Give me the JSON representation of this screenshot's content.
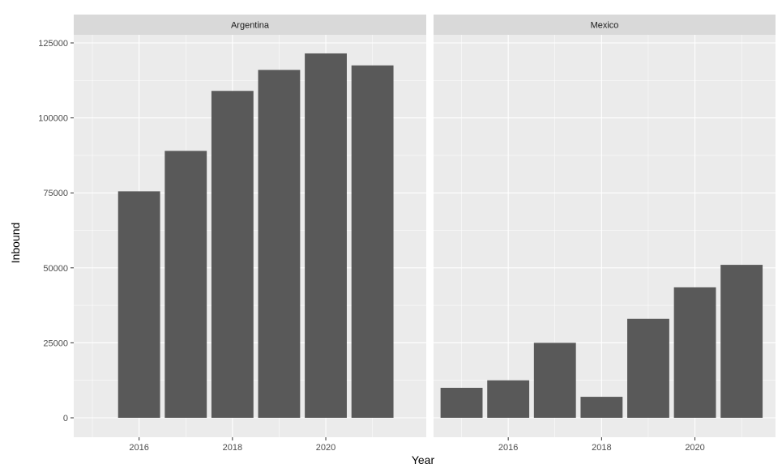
{
  "chart_data": {
    "type": "bar",
    "xlabel": "Year",
    "ylabel": "Inbound",
    "ylim": [
      0,
      125000
    ],
    "y_ticks": [
      0,
      25000,
      50000,
      75000,
      100000,
      125000
    ],
    "y_tick_labels": [
      "0",
      "25000",
      "50000",
      "75000",
      "100000",
      "125000"
    ],
    "grid": true,
    "colors": {
      "panel": "#ebebeb",
      "strip": "#d9d9d9",
      "bar": "#595959",
      "grid": "#ffffff"
    },
    "facets": [
      {
        "label": "Argentina",
        "xlim": [
          2014.6,
          2021.8
        ],
        "x_ticks": [
          2016,
          2018,
          2020
        ],
        "x_tick_labels": [
          "2016",
          "2018",
          "2020"
        ],
        "x": [
          2016,
          2017,
          2018,
          2019,
          2020,
          2021
        ],
        "values": [
          75500,
          89000,
          109000,
          116000,
          121500,
          117500
        ]
      },
      {
        "label": "Mexico",
        "xlim": [
          2014.4,
          2021.6
        ],
        "x_ticks": [
          2016,
          2018,
          2020
        ],
        "x_tick_labels": [
          "2016",
          "2018",
          "2020"
        ],
        "x": [
          2015,
          2016,
          2017,
          2018,
          2019,
          2020,
          2021
        ],
        "values": [
          10000,
          12500,
          25000,
          7000,
          33000,
          43500,
          51000
        ]
      }
    ]
  }
}
